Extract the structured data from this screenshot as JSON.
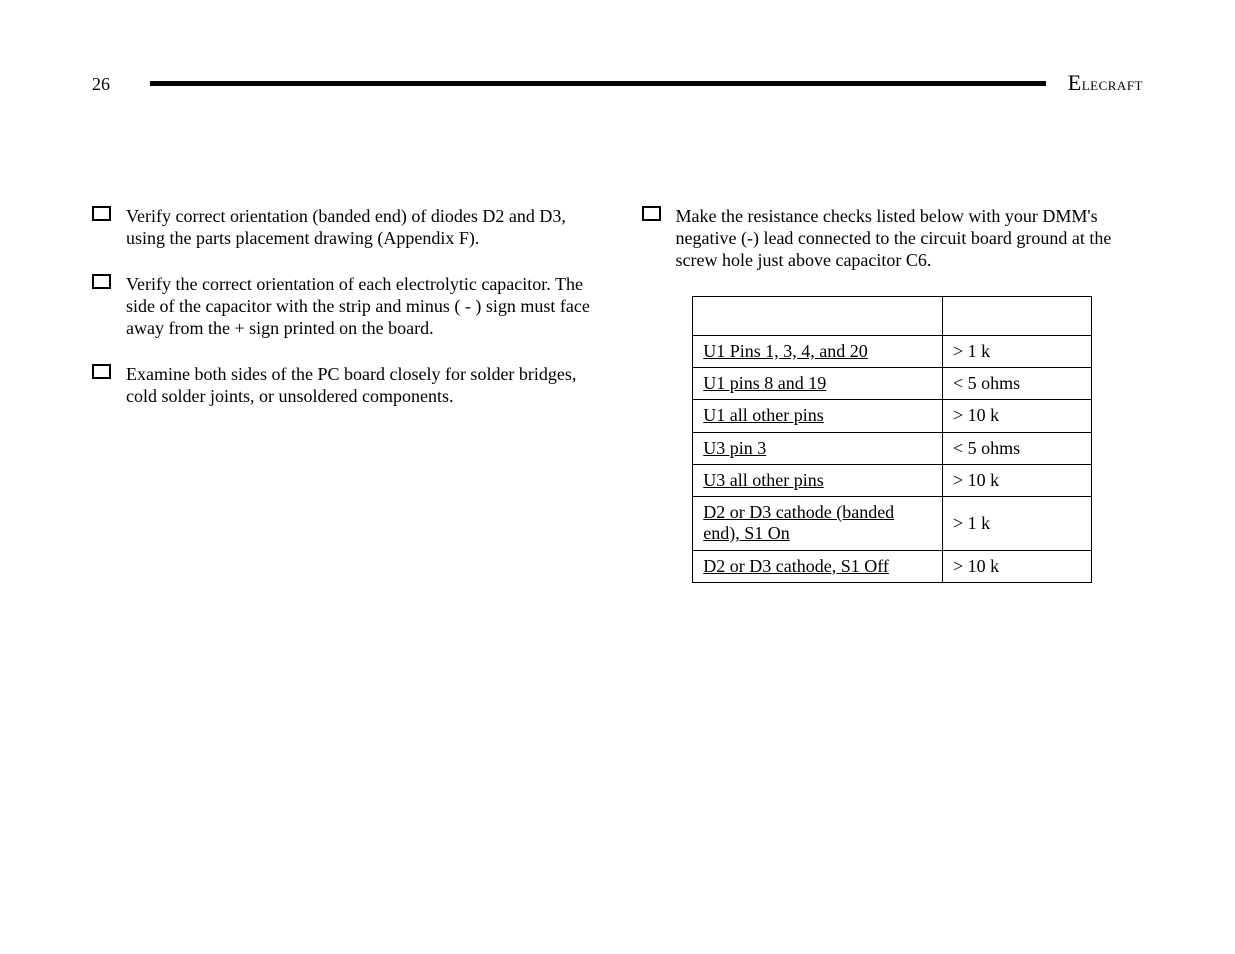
{
  "page_number": "26",
  "brand_first": "E",
  "brand_rest": "lecraft",
  "left_steps": [
    "Verify correct orientation (banded end) of diodes D2 and D3, using the parts placement drawing (Appendix F).",
    "Verify the correct orientation of each electrolytic capacitor. The side of the capacitor with the strip and minus ( - ) sign must face away from the + sign printed on the board.",
    "Examine both sides of the PC board closely for solder bridges, cold solder joints, or unsoldered components."
  ],
  "right_step": "Make the resistance checks listed below with your DMM's negative (-) lead connected to the circuit board ground at the screw hole just above capacitor C6.",
  "table": {
    "rows": [
      {
        "point": "U1 Pins 1, 3, 4, and 20",
        "value": "> 1 k"
      },
      {
        "point": "U1 pins 8 and 19",
        "value": "< 5 ohms"
      },
      {
        "point": "U1 all other pins",
        "value": "> 10 k"
      },
      {
        "point": "U3 pin 3",
        "value": "< 5 ohms"
      },
      {
        "point": "U3 all other pins",
        "value": "> 10 k"
      },
      {
        "point": "D2 or D3 cathode (banded end), S1 On",
        "value": "> 1 k"
      },
      {
        "point": "D2 or D3 cathode, S1 Off",
        "value": "> 10 k"
      }
    ]
  },
  "colors": {
    "text": "#000000",
    "background": "#ffffff",
    "rule": "#000000",
    "table_border": "#000000"
  },
  "fonts": {
    "body_family": "Times New Roman",
    "body_size_pt": 14,
    "brand_variant": "small-caps"
  }
}
